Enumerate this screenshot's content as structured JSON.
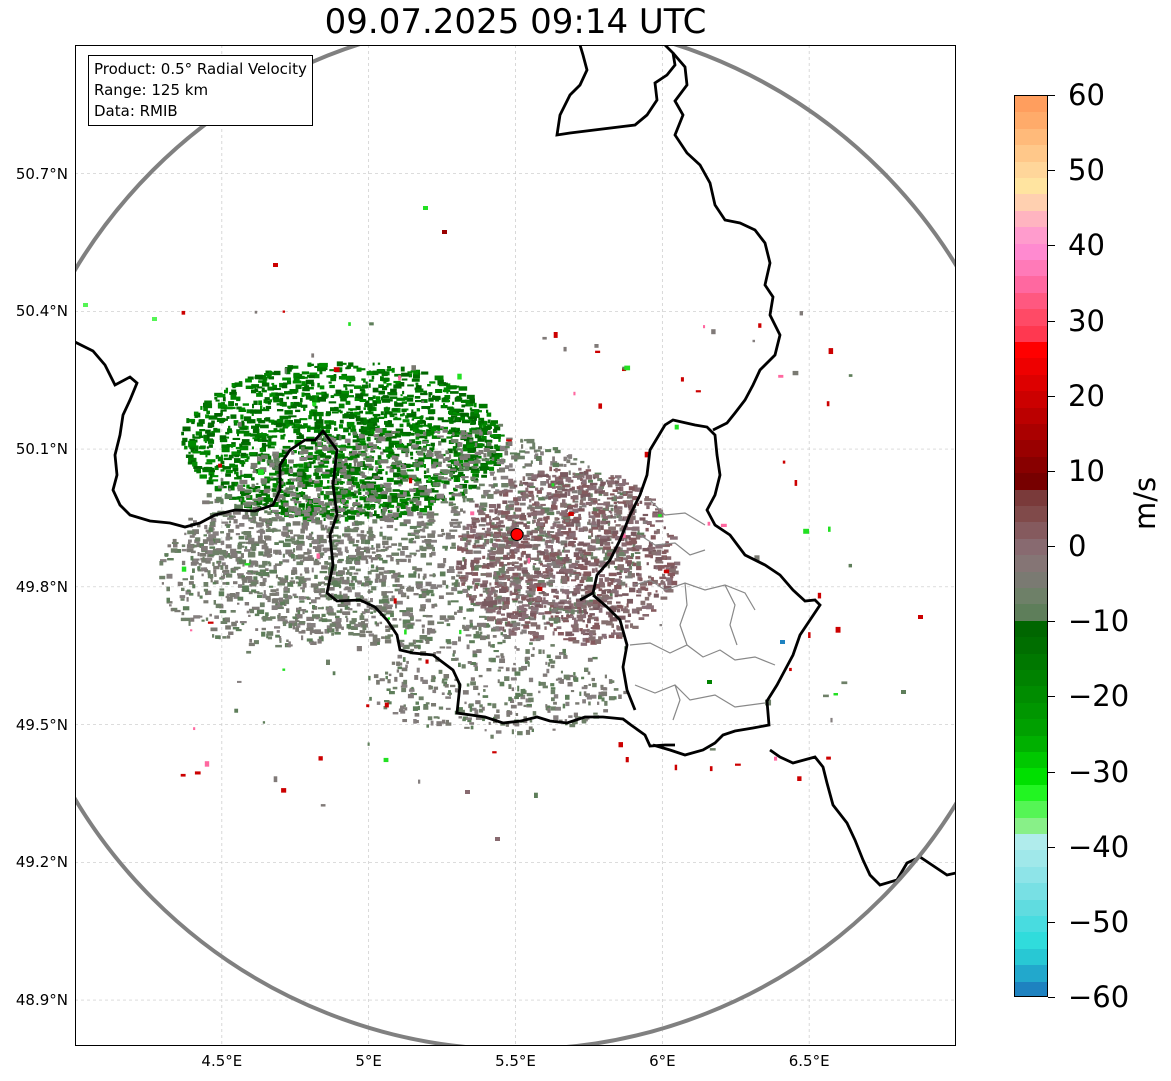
{
  "title": "09.07.2025 09:14 UTC",
  "info_box": {
    "product": "Product: 0.5° Radial Velocity",
    "range": "Range: 125 km",
    "data": "Data: RMIB"
  },
  "map": {
    "lon_range": [
      4.0,
      7.0
    ],
    "lat_range": [
      48.8,
      50.98
    ],
    "x_ticks": [
      {
        "value": 4.5,
        "label": "4.5°E"
      },
      {
        "value": 5.0,
        "label": "5°E"
      },
      {
        "value": 5.5,
        "label": "5.5°E"
      },
      {
        "value": 6.0,
        "label": "6°E"
      },
      {
        "value": 6.5,
        "label": "6.5°E"
      }
    ],
    "y_ticks": [
      {
        "value": 50.7,
        "label": "50.7°N"
      },
      {
        "value": 50.4,
        "label": "50.4°N"
      },
      {
        "value": 50.1,
        "label": "50.1°N"
      },
      {
        "value": 49.8,
        "label": "49.8°N"
      },
      {
        "value": 49.5,
        "label": "49.5°N"
      },
      {
        "value": 49.2,
        "label": "49.2°N"
      },
      {
        "value": 48.9,
        "label": "48.9°N"
      }
    ],
    "radar_site": {
      "lon": 5.505,
      "lat": 49.914
    },
    "range_ring_color": "#808080",
    "border_color": "#000000",
    "province_border_color": "#888888"
  },
  "colorbar": {
    "unit": "m/s",
    "min": -60,
    "max": 60,
    "ticks": [
      "60",
      "50",
      "40",
      "30",
      "20",
      "10",
      "0",
      "−10",
      "−20",
      "−30",
      "−40",
      "−50",
      "−60"
    ],
    "tick_values": [
      60,
      50,
      40,
      30,
      20,
      10,
      0,
      -10,
      -20,
      -30,
      -40,
      -50,
      -60
    ],
    "colors_top_to_bottom": [
      "#ff9e5e",
      "#ffab6a",
      "#ffba7a",
      "#ffc88a",
      "#ffd69a",
      "#ffe4a0",
      "#ffd0b0",
      "#ffb4c0",
      "#ff9ccd",
      "#ff8ad0",
      "#ff7ab8",
      "#ff68a0",
      "#ff5880",
      "#ff4a66",
      "#ff3850",
      "#ff0000",
      "#ee0000",
      "#dd0000",
      "#cc0000",
      "#bb0000",
      "#aa0000",
      "#990000",
      "#880000",
      "#770000",
      "#7a3a3a",
      "#804a4a",
      "#855a5e",
      "#886a70",
      "#857575",
      "#7a7a72",
      "#6e8068",
      "#5e7e5a",
      "#006600",
      "#006e00",
      "#007800",
      "#008200",
      "#008c00",
      "#009600",
      "#00a000",
      "#00b000",
      "#00c800",
      "#00e000",
      "#22f522",
      "#55f555",
      "#88f088",
      "#b0ecec",
      "#a0e8ea",
      "#8ee4e8",
      "#78e0e4",
      "#60dce0",
      "#48dce0",
      "#30dcdc",
      "#28c8d4",
      "#22a8cc",
      "#1e82c0"
    ]
  },
  "colors": {
    "approaching_green": "#008000",
    "near_zero_gray": "#868080",
    "outbound_red": "#cc0000",
    "radar_marker": "#ff0000"
  }
}
